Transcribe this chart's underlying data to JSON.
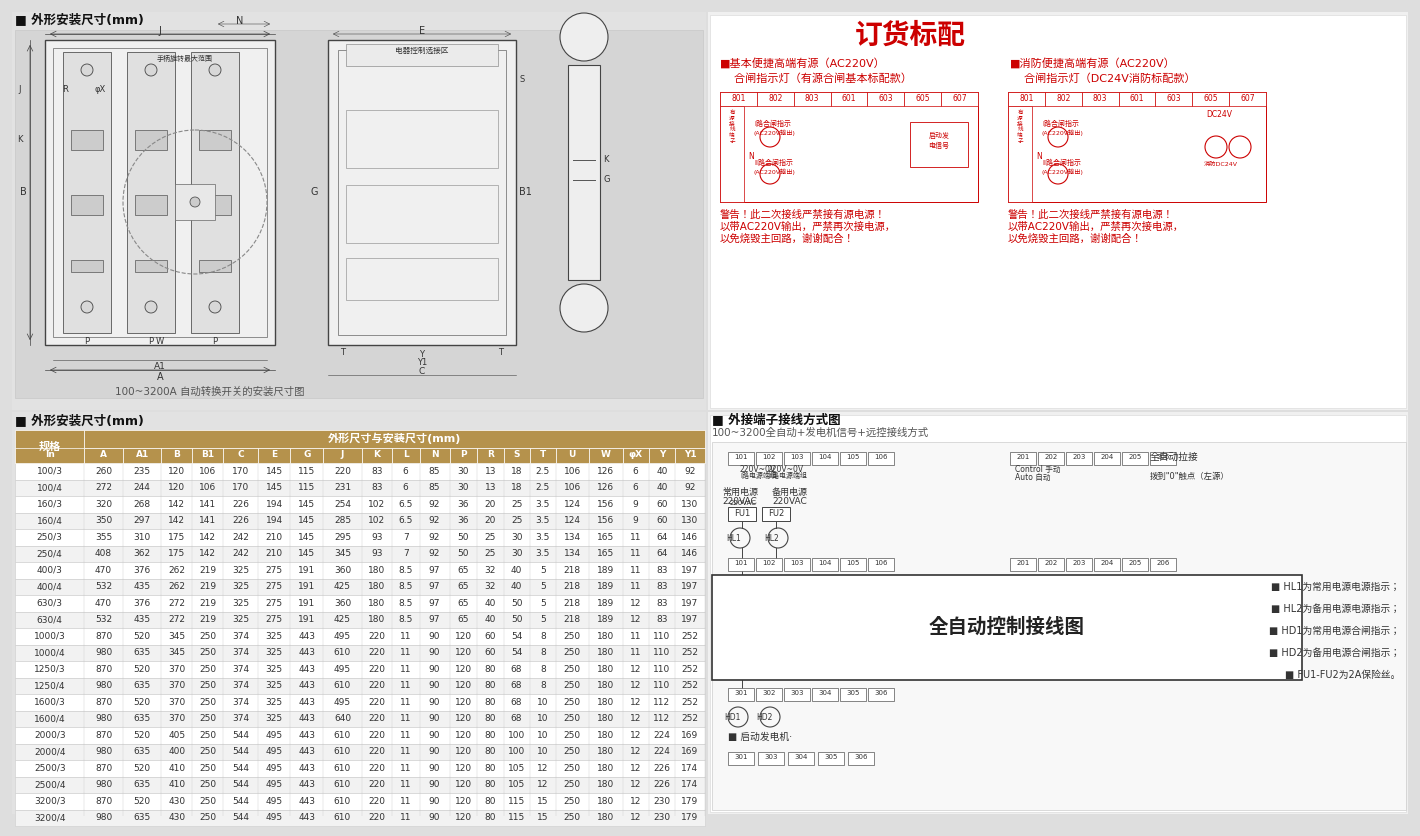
{
  "title_drawing": "■ 外形安装尺寸(mm)",
  "drawing_caption": "100~3200A 自动转换开关的安装尺寸图",
  "title_table": "■ 外形安装尺寸(mm)",
  "table_header_col1": "规格",
  "table_header_col2": "外形尺寸与安装尺寸(mm)",
  "table_sub_headers": [
    "In",
    "A",
    "A1",
    "B",
    "B1",
    "C",
    "E",
    "G",
    "J",
    "K",
    "L",
    "N",
    "P",
    "R",
    "S",
    "T",
    "U",
    "W",
    "φX",
    "Y",
    "Y1"
  ],
  "table_data": [
    [
      "100/3",
      260,
      235,
      120,
      106,
      170,
      145,
      115,
      220,
      83,
      6,
      85,
      30,
      13,
      18,
      "2.5",
      106,
      126,
      6,
      40,
      92
    ],
    [
      "100/4",
      272,
      244,
      120,
      106,
      170,
      145,
      115,
      231,
      83,
      6,
      85,
      30,
      13,
      18,
      "2.5",
      106,
      126,
      6,
      40,
      92
    ],
    [
      "160/3",
      320,
      268,
      142,
      141,
      226,
      194,
      145,
      254,
      102,
      "6.5",
      92,
      36,
      20,
      25,
      "3.5",
      124,
      156,
      9,
      60,
      130
    ],
    [
      "160/4",
      350,
      297,
      142,
      141,
      226,
      194,
      145,
      285,
      102,
      "6.5",
      92,
      36,
      20,
      25,
      "3.5",
      124,
      156,
      9,
      60,
      130
    ],
    [
      "250/3",
      355,
      310,
      175,
      142,
      242,
      210,
      145,
      295,
      93,
      7,
      92,
      50,
      25,
      30,
      "3.5",
      134,
      165,
      11,
      64,
      146
    ],
    [
      "250/4",
      408,
      362,
      175,
      142,
      242,
      210,
      145,
      345,
      93,
      7,
      92,
      50,
      25,
      30,
      "3.5",
      134,
      165,
      11,
      64,
      146
    ],
    [
      "400/3",
      470,
      376,
      262,
      219,
      325,
      275,
      191,
      360,
      180,
      "8.5",
      97,
      65,
      32,
      40,
      5,
      218,
      189,
      11,
      83,
      197
    ],
    [
      "400/4",
      532,
      435,
      262,
      219,
      325,
      275,
      191,
      425,
      180,
      "8.5",
      97,
      65,
      32,
      40,
      5,
      218,
      189,
      11,
      83,
      197
    ],
    [
      "630/3",
      470,
      376,
      272,
      219,
      325,
      275,
      191,
      360,
      180,
      "8.5",
      97,
      65,
      40,
      50,
      5,
      218,
      189,
      12,
      83,
      197
    ],
    [
      "630/4",
      532,
      435,
      272,
      219,
      325,
      275,
      191,
      425,
      180,
      "8.5",
      97,
      65,
      40,
      50,
      5,
      218,
      189,
      12,
      83,
      197
    ],
    [
      "1000/3",
      870,
      520,
      345,
      250,
      374,
      325,
      443,
      495,
      220,
      11,
      90,
      120,
      60,
      54,
      8,
      250,
      180,
      11,
      110,
      252
    ],
    [
      "1000/4",
      980,
      635,
      345,
      250,
      374,
      325,
      443,
      610,
      220,
      11,
      90,
      120,
      60,
      54,
      8,
      250,
      180,
      11,
      110,
      252
    ],
    [
      "1250/3",
      870,
      520,
      370,
      250,
      374,
      325,
      443,
      495,
      220,
      11,
      90,
      120,
      80,
      68,
      8,
      250,
      180,
      12,
      110,
      252
    ],
    [
      "1250/4",
      980,
      635,
      370,
      250,
      374,
      325,
      443,
      610,
      220,
      11,
      90,
      120,
      80,
      68,
      8,
      250,
      180,
      12,
      110,
      252
    ],
    [
      "1600/3",
      870,
      520,
      370,
      250,
      374,
      325,
      443,
      495,
      220,
      11,
      90,
      120,
      80,
      68,
      10,
      250,
      180,
      12,
      112,
      252
    ],
    [
      "1600/4",
      980,
      635,
      370,
      250,
      374,
      325,
      443,
      640,
      220,
      11,
      90,
      120,
      80,
      68,
      10,
      250,
      180,
      12,
      112,
      252
    ],
    [
      "2000/3",
      870,
      520,
      405,
      250,
      544,
      495,
      443,
      610,
      220,
      11,
      90,
      120,
      80,
      100,
      10,
      250,
      180,
      12,
      224,
      169
    ],
    [
      "2000/4",
      980,
      635,
      400,
      250,
      544,
      495,
      443,
      610,
      220,
      11,
      90,
      120,
      80,
      100,
      10,
      250,
      180,
      12,
      224,
      169
    ],
    [
      "2500/3",
      870,
      520,
      410,
      250,
      544,
      495,
      443,
      610,
      220,
      11,
      90,
      120,
      80,
      105,
      12,
      250,
      180,
      12,
      226,
      174
    ],
    [
      "2500/4",
      980,
      635,
      410,
      250,
      544,
      495,
      443,
      610,
      220,
      11,
      90,
      120,
      80,
      105,
      12,
      250,
      180,
      12,
      226,
      174
    ],
    [
      "3200/3",
      870,
      520,
      430,
      250,
      544,
      495,
      443,
      610,
      220,
      11,
      90,
      120,
      80,
      115,
      15,
      250,
      180,
      12,
      230,
      179
    ],
    [
      "3200/4",
      980,
      635,
      430,
      250,
      544,
      495,
      443,
      610,
      220,
      11,
      90,
      120,
      80,
      115,
      15,
      250,
      180,
      12,
      230,
      179
    ]
  ],
  "order_title": "订货标配",
  "order_left_line1": "■基本便捷高端有源（AC220V）",
  "order_left_line2": "    合闸指示灯（有源合闸基本标配款）",
  "order_right_line1": "■消防便捷高端有源（AC220V）",
  "order_right_line2": "    合闸指示灯（DC24V消防标配款）",
  "warning_text": "警告！此二次接线严禁接有源电源！\n以带AC220V输出，严禁再次接电源，\n以免烧毁主回路，谢谢配合！",
  "terminal_title": "■ 外接端子接线方式图",
  "terminal_subtitle": "100~3200全自动+发电机信号+远控接线方式",
  "wiring_legend": [
    "HL1为常用电源电源指示；",
    "HL2为备用电源电源指示；",
    "HD1为常用电源合闸指示；",
    "HD2为备用电源合闸指示；",
    "FU1-FU2为2A保险丝。"
  ],
  "bg_color": "#dedede",
  "panel_bg_left": "#e2e2e2",
  "panel_bg_right": "#ececec",
  "draw_bg": "#d5d5d5",
  "header_bg": "#b5924c",
  "header_text_color": "#ffffff",
  "row_color_odd": "#ffffff",
  "row_color_even": "#f2f2f2",
  "border_color": "#cccccc",
  "text_color": "#333333",
  "red_color": "#cc0000",
  "dark_color": "#111111"
}
